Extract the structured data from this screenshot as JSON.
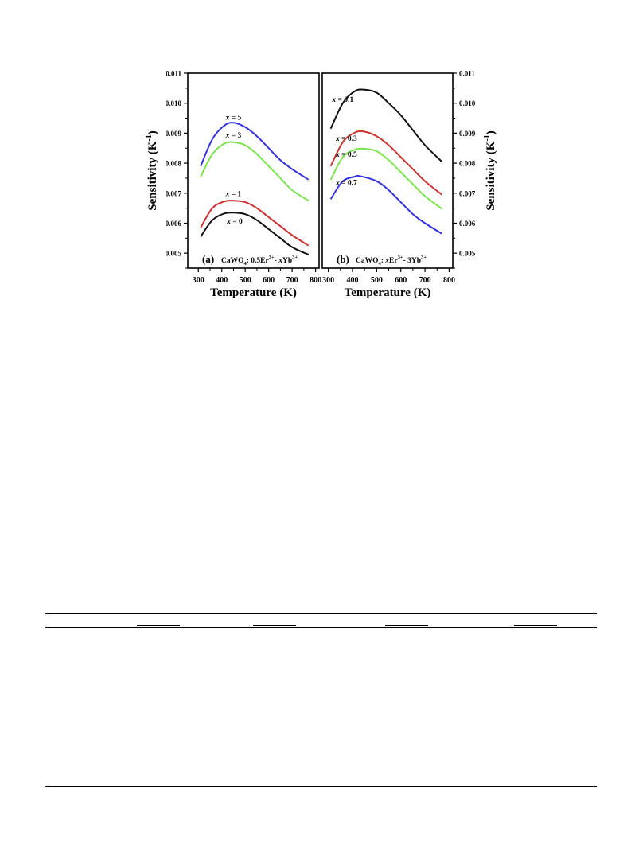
{
  "chart_data": [
    {
      "type": "line",
      "panel_label": "(a)",
      "annotation": {
        "host": "CaWO",
        "host_sub": "4",
        "text": ": 0.5Er",
        "sup1": "3+",
        "mid": "- ",
        "var": "x",
        "text2": "Yb",
        "sup2": "3+"
      },
      "xlabel": "Temperature (K)",
      "ylabel": "Sensitivity (K",
      "ylabel_sup": "-1",
      "ylabel_end": ")",
      "xlim": [
        255,
        815
      ],
      "ylim": [
        0.0045,
        0.011
      ],
      "xticks": [
        300,
        400,
        500,
        600,
        700,
        800
      ],
      "xtick_labels": [
        "300",
        "400",
        "500",
        "600",
        "700",
        "800"
      ],
      "yticks": [
        0.005,
        0.006,
        0.007,
        0.008,
        0.009,
        0.01,
        0.011
      ],
      "ytick_labels": [
        "0.005",
        "0.006",
        "0.007",
        "0.008",
        "0.009",
        "0.010",
        "0.011"
      ],
      "ytick_side": "left",
      "series": [
        {
          "name": "x = 5",
          "color": "#3333dd",
          "x": [
            310,
            360,
            410,
            450,
            500,
            550,
            600,
            650,
            700,
            770
          ],
          "y": [
            0.0079,
            0.0088,
            0.00925,
            0.00935,
            0.0092,
            0.0089,
            0.0085,
            0.0081,
            0.0078,
            0.00745
          ],
          "label_at": [
            450,
            0.00945
          ]
        },
        {
          "name": "x = 3",
          "color": "#7be34b",
          "x": [
            310,
            360,
            410,
            450,
            500,
            550,
            600,
            650,
            700,
            770
          ],
          "y": [
            0.00755,
            0.0083,
            0.00865,
            0.0087,
            0.0086,
            0.0083,
            0.0079,
            0.0075,
            0.0071,
            0.00675
          ],
          "label_at": [
            450,
            0.00885
          ]
        },
        {
          "name": "x = 1",
          "color": "#cc3333",
          "x": [
            310,
            360,
            410,
            450,
            500,
            550,
            600,
            650,
            700,
            770
          ],
          "y": [
            0.00585,
            0.0065,
            0.00672,
            0.00675,
            0.0067,
            0.0065,
            0.0062,
            0.0059,
            0.0056,
            0.00525
          ],
          "label_at": [
            450,
            0.0069
          ]
        },
        {
          "name": "x = 0",
          "color": "#111111",
          "x": [
            310,
            360,
            410,
            450,
            500,
            550,
            600,
            650,
            700,
            770
          ],
          "y": [
            0.00555,
            0.0061,
            0.00632,
            0.00635,
            0.0063,
            0.0061,
            0.0058,
            0.0055,
            0.0052,
            0.00495
          ],
          "label_at": [
            455,
            0.00598
          ]
        }
      ]
    },
    {
      "type": "line",
      "panel_label": "(b)",
      "annotation": {
        "host": "CaWO",
        "host_sub": "4",
        "text": ": ",
        "var": "x",
        "text_b": "Er",
        "sup1": "3+",
        "mid": "- 3Yb",
        "sup2": "3+"
      },
      "xlabel": "Temperature (K)",
      "ylabel": "Sensitivity (K",
      "ylabel_sup": "-1",
      "ylabel_end": ")",
      "xlim": [
        275,
        815
      ],
      "ylim": [
        0.0045,
        0.011
      ],
      "xticks": [
        300,
        400,
        500,
        600,
        700,
        800
      ],
      "xtick_labels": [
        "300",
        "400",
        "500",
        "600",
        "700",
        "800"
      ],
      "yticks": [
        0.005,
        0.006,
        0.007,
        0.008,
        0.009,
        0.01,
        0.011
      ],
      "ytick_labels": [
        "0.005",
        "0.006",
        "0.007",
        "0.008",
        "0.009",
        "0.010",
        "0.011"
      ],
      "ytick_side": "right",
      "series": [
        {
          "name": "x = 0.1",
          "color": "#111111",
          "x": [
            310,
            360,
            410,
            450,
            500,
            550,
            600,
            650,
            700,
            770
          ],
          "y": [
            0.00915,
            0.01,
            0.0104,
            0.01045,
            0.01035,
            0.01,
            0.0096,
            0.0091,
            0.0086,
            0.00805
          ],
          "label_at": [
            360,
            0.01005
          ]
        },
        {
          "name": "x = 0.3",
          "color": "#cc3333",
          "x": [
            310,
            360,
            410,
            450,
            500,
            550,
            600,
            650,
            700,
            770
          ],
          "y": [
            0.0079,
            0.0087,
            0.00902,
            0.00905,
            0.0089,
            0.0086,
            0.0082,
            0.0078,
            0.0074,
            0.00695
          ],
          "label_at": [
            375,
            0.00875
          ]
        },
        {
          "name": "x = 0.5",
          "color": "#7be34b",
          "x": [
            310,
            360,
            410,
            450,
            500,
            550,
            600,
            650,
            700,
            770
          ],
          "y": [
            0.00745,
            0.0082,
            0.00845,
            0.00848,
            0.0084,
            0.0081,
            0.0077,
            0.0073,
            0.0069,
            0.00648
          ],
          "label_at": [
            375,
            0.00822
          ]
        },
        {
          "name": "x = 0.7",
          "color": "#3333dd",
          "x": [
            310,
            360,
            410,
            430,
            500,
            550,
            600,
            650,
            700,
            770
          ],
          "y": [
            0.0068,
            0.0074,
            0.00755,
            0.00757,
            0.0074,
            0.0071,
            0.0067,
            0.0063,
            0.006,
            0.00565
          ],
          "label_at": [
            375,
            0.00727
          ]
        }
      ]
    }
  ]
}
